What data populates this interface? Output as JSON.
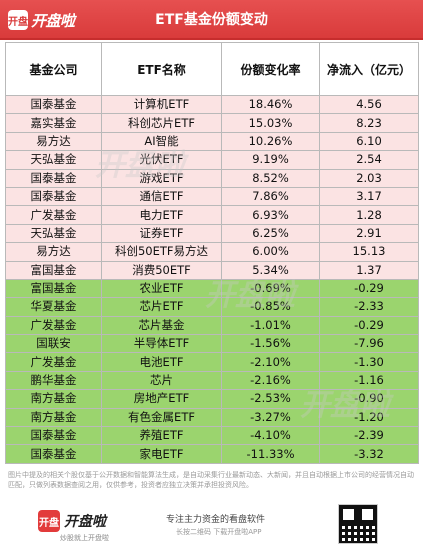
{
  "header": {
    "logo_badge": "开盘",
    "logo_text": "开盘啦",
    "title": "ETF基金份额变动"
  },
  "table": {
    "columns": [
      "基金公司",
      "ETF名称",
      "份额变化率",
      "净流入（亿元）"
    ],
    "rows": [
      {
        "company": "国泰基金",
        "name": "计算机ETF",
        "change": "18.46%",
        "inflow": "4.56",
        "trend": "up"
      },
      {
        "company": "嘉实基金",
        "name": "科创芯片ETF",
        "change": "15.03%",
        "inflow": "8.23",
        "trend": "up"
      },
      {
        "company": "易方达",
        "name": "AI智能",
        "change": "10.26%",
        "inflow": "6.10",
        "trend": "up"
      },
      {
        "company": "天弘基金",
        "name": "光伏ETF",
        "change": "9.19%",
        "inflow": "2.54",
        "trend": "up"
      },
      {
        "company": "国泰基金",
        "name": "游戏ETF",
        "change": "8.52%",
        "inflow": "2.03",
        "trend": "up"
      },
      {
        "company": "国泰基金",
        "name": "通信ETF",
        "change": "7.86%",
        "inflow": "3.17",
        "trend": "up"
      },
      {
        "company": "广发基金",
        "name": "电力ETF",
        "change": "6.93%",
        "inflow": "1.28",
        "trend": "up"
      },
      {
        "company": "天弘基金",
        "name": "证券ETF",
        "change": "6.25%",
        "inflow": "2.91",
        "trend": "up"
      },
      {
        "company": "易方达",
        "name": "科创50ETF易方达",
        "change": "6.00%",
        "inflow": "15.13",
        "trend": "up"
      },
      {
        "company": "富国基金",
        "name": "消费50ETF",
        "change": "5.34%",
        "inflow": "1.37",
        "trend": "up"
      },
      {
        "company": "富国基金",
        "name": "农业ETF",
        "change": "-0.69%",
        "inflow": "-0.29",
        "trend": "down"
      },
      {
        "company": "华夏基金",
        "name": "芯片ETF",
        "change": "-0.85%",
        "inflow": "-2.33",
        "trend": "down"
      },
      {
        "company": "广发基金",
        "name": "芯片基金",
        "change": "-1.01%",
        "inflow": "-0.29",
        "trend": "down"
      },
      {
        "company": "国联安",
        "name": "半导体ETF",
        "change": "-1.56%",
        "inflow": "-7.96",
        "trend": "down"
      },
      {
        "company": "广发基金",
        "name": "电池ETF",
        "change": "-2.10%",
        "inflow": "-1.30",
        "trend": "down"
      },
      {
        "company": "鹏华基金",
        "name": "芯片",
        "change": "-2.16%",
        "inflow": "-1.16",
        "trend": "down"
      },
      {
        "company": "南方基金",
        "name": "房地产ETF",
        "change": "-2.53%",
        "inflow": "-0.90",
        "trend": "down"
      },
      {
        "company": "南方基金",
        "name": "有色金属ETF",
        "change": "-3.27%",
        "inflow": "-1.20",
        "trend": "down"
      },
      {
        "company": "国泰基金",
        "name": "养殖ETF",
        "change": "-4.10%",
        "inflow": "-2.39",
        "trend": "down"
      },
      {
        "company": "国泰基金",
        "name": "家电ETF",
        "change": "-11.33%",
        "inflow": "-3.32",
        "trend": "down"
      }
    ]
  },
  "disclaimer": "图片中提及的相关个股仅基于公开数据和智能算法生成，是自动采集行业最新动态、大新闻，并且自动根据上市公司的经营情况自动匹配，只做列表数据查阅之用，仅供参考，投资者应独立决策并承担投资风险。",
  "watermark": "开盘啦",
  "footer": {
    "badge": "开盘",
    "name": "开盘啦",
    "sub": "炒股就上开盘啦",
    "slogan": "专注主力资金的看盘软件",
    "hint": "长按二维码  下载开盘啦APP"
  },
  "colors": {
    "header_red": "#d93b3b",
    "positive_row": "#fbe3e3",
    "negative_row": "#9bd46e"
  }
}
